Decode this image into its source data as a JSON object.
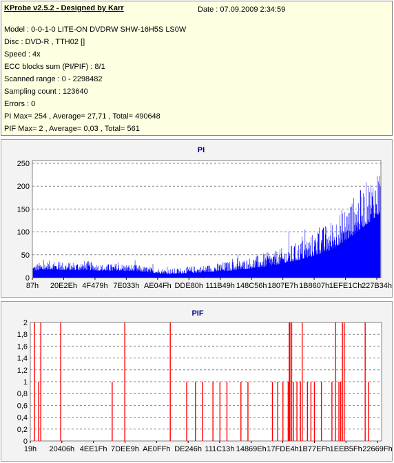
{
  "header": {
    "title": "KProbe v2.5.2 - Designed by Karr",
    "date": "Date : 07.09.2009 2:34:59"
  },
  "info": {
    "model": "Model : 0-0-1-0 LITE-ON DVDRW SHW-16H5S  LS0W",
    "disc": "Disc : DVD-R  , TTH02 []",
    "speed": "Speed : 4x",
    "ecc": "ECC blocks sum (PI/PIF) : 8/1",
    "range": "Scanned range : 0 - 2298482",
    "sampling": "Sampling count : 123640",
    "errors": "Errors : 0",
    "pi_summary": "PI Max= 254 , Average= 27,71 , Total= 490648",
    "pif_summary": "PIF Max= 2 , Average= 0,03 , Total= 561"
  },
  "colors": {
    "series": "#0000ff",
    "pif_series": "#ff0000",
    "grid": "#808080",
    "plot_bg": "#ffffff",
    "panel_bg": "#f3f3f3"
  },
  "chart_data": [
    {
      "type": "bar",
      "title": "PI",
      "ylim": [
        0,
        256
      ],
      "yticks": [
        "0",
        "50",
        "100",
        "150",
        "200",
        "250"
      ],
      "ytick_values": [
        0,
        50,
        100,
        150,
        200,
        250
      ],
      "xticks": [
        "87h",
        "20E2Eh",
        "4F479h",
        "7E033h",
        "AE04Fh",
        "DDE80h",
        "111B49h",
        "148C56h",
        "1807E7h",
        "1B8607h",
        "1EFE1Ch",
        "227B34h"
      ],
      "grid": true,
      "legend": "none",
      "profile": {
        "x": [
          0,
          0.05,
          0.1,
          0.15,
          0.2,
          0.25,
          0.3,
          0.35,
          0.4,
          0.45,
          0.5,
          0.55,
          0.6,
          0.65,
          0.7,
          0.75,
          0.8,
          0.85,
          0.9,
          0.95,
          1.0
        ],
        "base": [
          15,
          18,
          16,
          17,
          15,
          15,
          14,
          10,
          8,
          10,
          12,
          14,
          18,
          22,
          28,
          35,
          45,
          58,
          80,
          110,
          140
        ],
        "peak": [
          30,
          38,
          34,
          38,
          30,
          32,
          28,
          22,
          20,
          25,
          28,
          35,
          40,
          50,
          60,
          75,
          95,
          120,
          160,
          200,
          254
        ]
      }
    },
    {
      "type": "bar",
      "title": "PIF",
      "ylim": [
        0,
        2
      ],
      "yticks": [
        "0",
        "0,2",
        "0,4",
        "0,6",
        "0,8",
        "1",
        "1,2",
        "1,4",
        "1,6",
        "1,8",
        "2"
      ],
      "ytick_values": [
        0,
        0.2,
        0.4,
        0.6,
        0.8,
        1.0,
        1.2,
        1.4,
        1.6,
        1.8,
        2.0
      ],
      "xticks": [
        "19h",
        "20406h",
        "4EE1Fh",
        "7DEE9h",
        "AE0FFh",
        "DE246h",
        "111C13h",
        "14869Eh",
        "17FDE4h",
        "1B77EFh",
        "1EEB5Fh",
        "22669Fh"
      ],
      "grid": true,
      "legend": "none",
      "bars": {
        "x": [
          0.01,
          0.022,
          0.028,
          0.085,
          0.232,
          0.268,
          0.398,
          0.445,
          0.47,
          0.49,
          0.52,
          0.54,
          0.56,
          0.6,
          0.62,
          0.69,
          0.705,
          0.72,
          0.735,
          0.738,
          0.74,
          0.745,
          0.75,
          0.76,
          0.77,
          0.775,
          0.79,
          0.8,
          0.81,
          0.83,
          0.86,
          0.87,
          0.88,
          0.885,
          0.89,
          0.895,
          0.955,
          0.965
        ],
        "y": [
          2,
          1,
          2,
          2,
          1,
          2,
          2,
          1,
          1,
          1,
          1,
          1,
          1,
          1,
          1,
          1,
          1,
          1,
          1,
          2,
          2,
          2,
          1,
          1,
          1,
          2,
          1,
          1,
          1,
          1,
          1,
          2,
          1,
          1,
          2,
          2,
          2,
          1
        ]
      }
    }
  ]
}
